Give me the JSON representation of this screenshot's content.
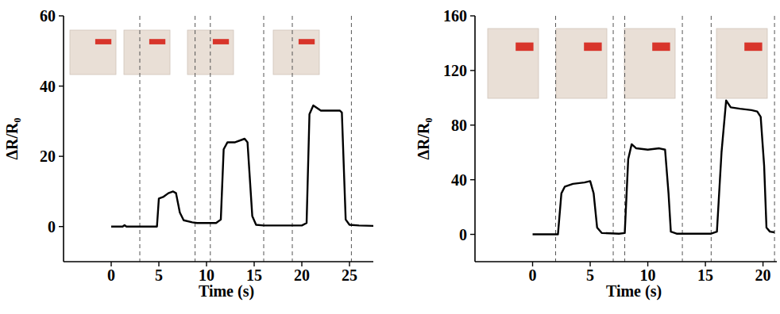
{
  "chart_data": [
    {
      "type": "line",
      "x_label": "Time (s)",
      "y_label": "ΔR/R₀",
      "color": "#000000",
      "xlim": [
        -5,
        27.5
      ],
      "xticks": [
        0,
        5,
        10,
        15,
        20,
        25
      ],
      "ylim": [
        -10,
        60
      ],
      "yticks": [
        0,
        20,
        40,
        60
      ],
      "dividers": [
        3,
        8.8,
        10.4,
        16,
        19,
        25.2
      ],
      "x": [
        0,
        1.2,
        1.4,
        1.6,
        4.8,
        5.0,
        5.5,
        6.0,
        6.5,
        6.8,
        7.2,
        7.6,
        8.5,
        9.0,
        10.5,
        11.0,
        11.5,
        11.8,
        12.2,
        13.0,
        14.0,
        14.3,
        14.8,
        15.2,
        16.0,
        20.0,
        20.5,
        20.8,
        21.2,
        22.0,
        24.0,
        24.2,
        24.6,
        25.0,
        26.0,
        27.5
      ],
      "values": [
        0,
        0,
        0.4,
        0,
        0,
        8,
        8.5,
        9.5,
        10,
        9.5,
        4,
        1.8,
        1.2,
        1,
        1,
        1,
        2,
        22,
        24,
        24,
        25,
        24,
        3,
        0.5,
        0.3,
        0.3,
        1,
        32,
        34.5,
        33,
        33,
        32.5,
        2,
        0.5,
        0.3,
        0.2
      ]
    },
    {
      "type": "line",
      "x_label": "Time (s)",
      "y_label": "ΔR/R₀",
      "color": "#000000",
      "xlim": [
        -5,
        21.2
      ],
      "xticks": [
        0,
        5,
        10,
        15,
        20
      ],
      "ylim": [
        -20,
        160
      ],
      "yticks": [
        0,
        40,
        80,
        120,
        160
      ],
      "dividers": [
        2,
        7,
        8,
        13,
        15.5,
        21
      ],
      "x": [
        0,
        2.2,
        2.5,
        2.8,
        3.5,
        4.5,
        5.0,
        5.3,
        5.6,
        6.0,
        7.5,
        8.0,
        8.3,
        8.6,
        9.0,
        10.0,
        11.0,
        11.5,
        11.8,
        12.0,
        12.5,
        15.5,
        16.0,
        16.4,
        16.8,
        17.2,
        18.0,
        19.0,
        19.5,
        19.8,
        20.1,
        20.3,
        20.6,
        21.0
      ],
      "values": [
        0,
        0,
        30,
        35,
        37,
        38,
        39,
        30,
        5,
        1,
        0.5,
        1,
        55,
        66,
        63,
        62,
        63,
        62,
        30,
        2,
        0.5,
        0.5,
        2,
        60,
        98,
        93,
        92,
        91,
        90,
        86,
        50,
        5,
        2,
        1.5
      ]
    }
  ]
}
